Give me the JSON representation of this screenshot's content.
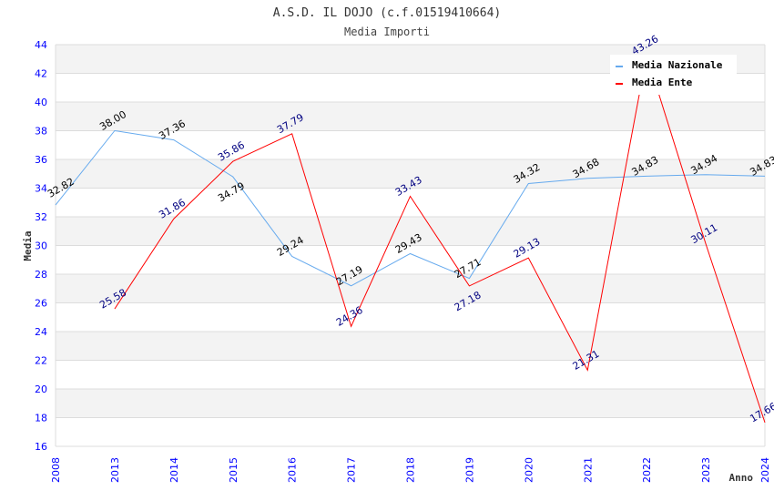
{
  "chart_data": {
    "type": "line",
    "title": "A.S.D. IL DOJO (c.f.01519410664)",
    "subtitle": "Media Importi",
    "xlabel": "Anno",
    "ylabel": "Media",
    "ylim": [
      16,
      44
    ],
    "yticks": [
      "16",
      "18",
      "20",
      "22",
      "24",
      "26",
      "28",
      "30",
      "32",
      "34",
      "36",
      "38",
      "40",
      "42",
      "44"
    ],
    "categories": [
      "2008",
      "2013",
      "2014",
      "2015",
      "2016",
      "2017",
      "2018",
      "2019",
      "2020",
      "2021",
      "2022",
      "2023",
      "2024"
    ],
    "legend_position": "top-right",
    "grid": true,
    "series": [
      {
        "name": "Media Nazionale",
        "color": "#66aaee",
        "label_color": "#000000",
        "values": [
          32.82,
          38.0,
          37.36,
          34.79,
          29.24,
          27.19,
          29.43,
          27.71,
          34.32,
          34.68,
          34.83,
          34.94,
          34.83
        ],
        "labels": [
          "32.82",
          "38.00",
          "37.36",
          "34.79",
          "29.24",
          "27.19",
          "29.43",
          "27.71",
          "34.32",
          "34.68",
          "34.83",
          "34.94",
          "34.83"
        ]
      },
      {
        "name": "Media Ente",
        "color": "#ff0000",
        "label_color": "#000080",
        "values": [
          null,
          25.58,
          31.86,
          35.86,
          37.79,
          24.36,
          33.43,
          27.18,
          29.13,
          21.31,
          43.26,
          30.11,
          17.66
        ],
        "labels": [
          null,
          "25.58",
          "31.86",
          "35.86",
          "37.79",
          "24.36",
          "33.43",
          "27.18",
          "29.13",
          "21.31",
          "43.26",
          "30.11",
          "17.66"
        ]
      }
    ]
  }
}
